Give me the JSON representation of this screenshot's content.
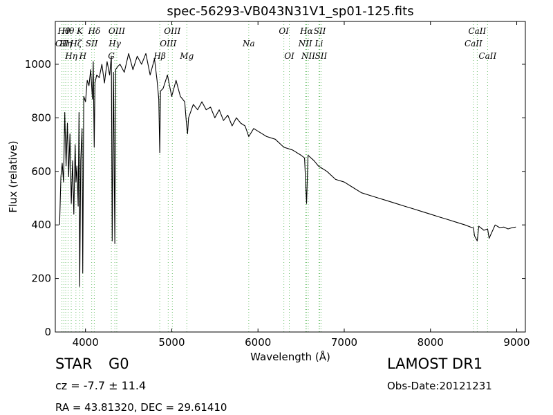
{
  "chart_data": {
    "type": "line",
    "title": "spec-56293-VB043N31V1_sp01-125.fits",
    "xlabel": "Wavelength (Å)",
    "ylabel": "Flux (relative)",
    "xlim": [
      3650,
      9100
    ],
    "ylim": [
      0,
      1160
    ],
    "xticks": [
      4000,
      5000,
      6000,
      7000,
      8000,
      9000
    ],
    "yticks": [
      0,
      200,
      400,
      600,
      800,
      1000
    ],
    "series": [
      {
        "color": "#000000",
        "x": [
          3700,
          3715,
          3730,
          3745,
          3760,
          3775,
          3790,
          3805,
          3820,
          3835,
          3850,
          3865,
          3880,
          3890,
          3900,
          3915,
          3925,
          3933,
          3945,
          3960,
          3968,
          3980,
          4000,
          4020,
          4040,
          4060,
          4080,
          4090,
          4101,
          4110,
          4130,
          4160,
          4190,
          4220,
          4250,
          4280,
          4300,
          4310,
          4325,
          4340,
          4350,
          4370,
          4400,
          4450,
          4500,
          4550,
          4600,
          4650,
          4700,
          4750,
          4800,
          4830,
          4850,
          4861,
          4870,
          4900,
          4950,
          5000,
          5050,
          5100,
          5150,
          5170,
          5183,
          5195,
          5250,
          5300,
          5350,
          5400,
          5450,
          5500,
          5550,
          5600,
          5650,
          5700,
          5750,
          5800,
          5850,
          5893,
          5950,
          6000,
          6100,
          6200,
          6300,
          6400,
          6500,
          6540,
          6563,
          6580,
          6650,
          6700,
          6800,
          6900,
          7000,
          7100,
          7200,
          7300,
          7400,
          7500,
          7600,
          7700,
          7800,
          7900,
          8000,
          8100,
          8200,
          8300,
          8400,
          8480,
          8498,
          8510,
          8542,
          8560,
          8620,
          8662,
          8680,
          8750,
          8800,
          8850,
          8900,
          8950,
          8990
        ],
        "y": [
          400,
          580,
          630,
          560,
          820,
          620,
          780,
          580,
          740,
          480,
          640,
          440,
          700,
          560,
          620,
          470,
          820,
          170,
          640,
          760,
          220,
          880,
          860,
          940,
          920,
          980,
          870,
          1010,
          690,
          930,
          960,
          950,
          1000,
          930,
          1010,
          960,
          1030,
          340,
          970,
          330,
          980,
          990,
          1000,
          970,
          1040,
          980,
          1030,
          1000,
          1040,
          960,
          1020,
          940,
          870,
          670,
          900,
          910,
          960,
          880,
          940,
          880,
          860,
          780,
          740,
          800,
          850,
          830,
          860,
          830,
          840,
          800,
          830,
          790,
          810,
          770,
          800,
          780,
          770,
          730,
          760,
          750,
          730,
          720,
          690,
          680,
          660,
          650,
          480,
          660,
          640,
          620,
          600,
          570,
          560,
          540,
          520,
          510,
          500,
          490,
          480,
          470,
          460,
          450,
          440,
          430,
          420,
          410,
          400,
          390,
          390,
          360,
          340,
          395,
          380,
          385,
          350,
          400,
          390,
          392,
          385,
          390,
          392
        ]
      }
    ],
    "annotations": [
      {
        "x": 3727,
        "label": "OII",
        "row": 1
      },
      {
        "x": 3750,
        "label": "Hθ",
        "row": 0
      },
      {
        "x": 3771,
        "label": "Hη",
        "row": 1
      },
      {
        "x": 3798,
        "label": "Hθ",
        "row": 0
      },
      {
        "x": 3835,
        "label": "Hη",
        "row": 2
      },
      {
        "x": 3889,
        "label": "Hζ",
        "row": 1
      },
      {
        "x": 3934,
        "label": "K",
        "row": 0
      },
      {
        "x": 3969,
        "label": "H",
        "row": 2
      },
      {
        "x": 4072,
        "label": "SII",
        "row": 1
      },
      {
        "x": 4102,
        "label": "Hδ",
        "row": 0
      },
      {
        "x": 4300,
        "label": "G",
        "row": 2
      },
      {
        "x": 4340,
        "label": "Hγ",
        "row": 1
      },
      {
        "x": 4363,
        "label": "OIII",
        "row": 0
      },
      {
        "x": 4861,
        "label": "Hβ",
        "row": 2
      },
      {
        "x": 4959,
        "label": "OIII",
        "row": 1
      },
      {
        "x": 5007,
        "label": "OIII",
        "row": 0
      },
      {
        "x": 5175,
        "label": "Mg",
        "row": 2
      },
      {
        "x": 5893,
        "label": "Na",
        "row": 1
      },
      {
        "x": 6300,
        "label": "OI",
        "row": 0
      },
      {
        "x": 6363,
        "label": "OI",
        "row": 2
      },
      {
        "x": 6548,
        "label": "NII",
        "row": 1
      },
      {
        "x": 6563,
        "label": "Hα",
        "row": 0
      },
      {
        "x": 6583,
        "label": "NII",
        "row": 2
      },
      {
        "x": 6716,
        "label": "SII",
        "row": 0
      },
      {
        "x": 6707,
        "label": "Li",
        "row": 1
      },
      {
        "x": 6731,
        "label": "SII",
        "row": 2
      },
      {
        "x": 8498,
        "label": "CaII",
        "row": 1
      },
      {
        "x": 8542,
        "label": "CaII",
        "row": 0
      },
      {
        "x": 8662,
        "label": "CaII",
        "row": 2
      }
    ],
    "grid": false,
    "legend": "none"
  },
  "info": {
    "object_class": "STAR",
    "subclass": "G0",
    "redshift": "cz = -7.7 ± 11.4",
    "coordinates": "RA = 43.81320, DEC = 29.61410",
    "survey": "LAMOST DR1",
    "obs_date": "Obs-Date:20121231"
  },
  "colors": {
    "spectrum": "#000000",
    "line_marker": "#6abf69"
  }
}
